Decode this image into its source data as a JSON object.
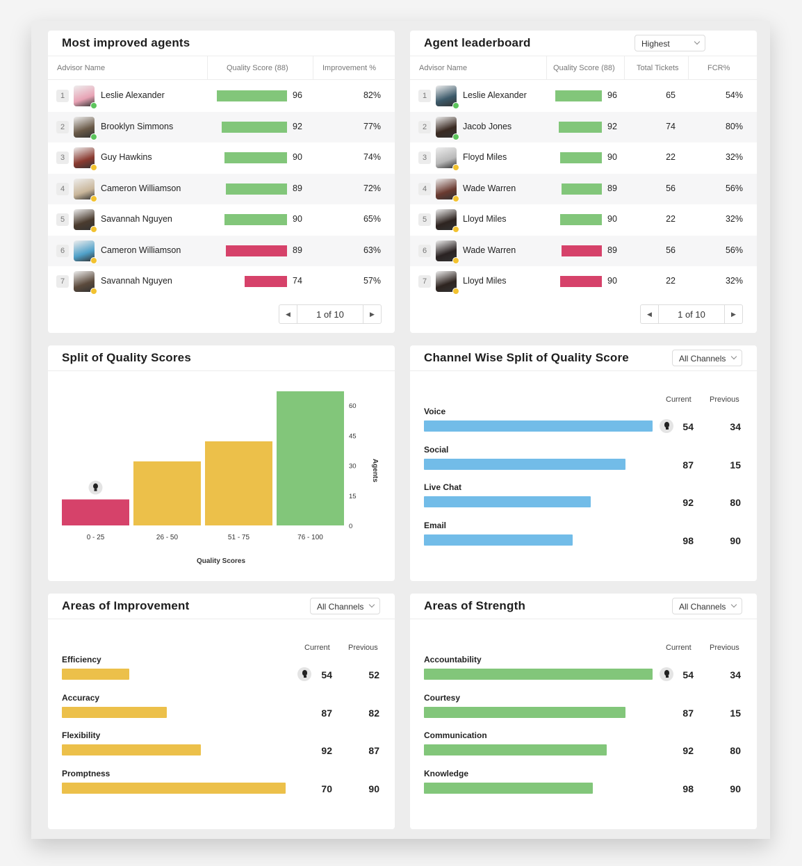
{
  "colors": {
    "green": "#82c67a",
    "red": "#d6426a",
    "yellow": "#ecc04a",
    "blue": "#72bce8",
    "status_green": "#5cc45c",
    "status_yellow": "#f2c230"
  },
  "most_improved": {
    "title": "Most improved agents",
    "columns": {
      "name": "Advisor Name",
      "score": "Quality Score (88)",
      "improvement": "Improvement %"
    },
    "rows": [
      {
        "rank": "1",
        "name": "Leslie Alexander",
        "score": 96,
        "score_text": "96",
        "improvement": "82%",
        "bar_color": "green",
        "status": "status_green",
        "avatar": "#e8a3b5"
      },
      {
        "rank": "2",
        "name": "Brooklyn Simmons",
        "score": 92,
        "score_text": "92",
        "improvement": "77%",
        "bar_color": "green",
        "status": "status_green",
        "avatar": "#6a5a48"
      },
      {
        "rank": "3",
        "name": "Guy Hawkins",
        "score": 90,
        "score_text": "90",
        "improvement": "74%",
        "bar_color": "green",
        "status": "status_yellow",
        "avatar": "#8a3a30"
      },
      {
        "rank": "4",
        "name": "Cameron Williamson",
        "score": 89,
        "score_text": "89",
        "improvement": "72%",
        "bar_color": "green",
        "status": "status_yellow",
        "avatar": "#c9b69a"
      },
      {
        "rank": "5",
        "name": "Savannah Nguyen",
        "score": 90,
        "score_text": "90",
        "improvement": "65%",
        "bar_color": "green",
        "status": "status_yellow",
        "avatar": "#4a3b2e"
      },
      {
        "rank": "6",
        "name": "Cameron Williamson",
        "score": 89,
        "score_text": "89",
        "improvement": "63%",
        "bar_color": "red",
        "status": "status_yellow",
        "avatar": "#4fa0c8"
      },
      {
        "rank": "7",
        "name": "Savannah Nguyen",
        "score": 74,
        "score_text": "74",
        "improvement": "57%",
        "bar_color": "red",
        "status": "status_yellow",
        "avatar": "#5b4a3c"
      }
    ],
    "pager": {
      "text": "1 of 10",
      "prev": "◀",
      "next": "▶"
    }
  },
  "leaderboard": {
    "title": "Agent leaderboard",
    "dropdown": "Highest",
    "columns": {
      "name": "Advisor Name",
      "score": "Quality Score (88)",
      "tickets": "Total Tickets",
      "fcr": "FCR%"
    },
    "rows": [
      {
        "rank": "1",
        "name": "Leslie Alexander",
        "score": 96,
        "score_text": "96",
        "tickets": "65",
        "fcr": "54%",
        "bar_color": "green",
        "status": "status_green",
        "avatar": "#3c5a6a"
      },
      {
        "rank": "2",
        "name": "Jacob Jones",
        "score": 92,
        "score_text": "92",
        "tickets": "74",
        "fcr": "80%",
        "bar_color": "green",
        "status": "status_green",
        "avatar": "#3a2a22"
      },
      {
        "rank": "3",
        "name": "Floyd Miles",
        "score": 90,
        "score_text": "90",
        "tickets": "22",
        "fcr": "32%",
        "bar_color": "green",
        "status": "status_yellow",
        "avatar": "#b8b8b8"
      },
      {
        "rank": "4",
        "name": "Wade Warren",
        "score": 89,
        "score_text": "89",
        "tickets": "56",
        "fcr": "56%",
        "bar_color": "green",
        "status": "status_yellow",
        "avatar": "#6a3a30"
      },
      {
        "rank": "5",
        "name": "Lloyd Miles",
        "score": 90,
        "score_text": "90",
        "tickets": "22",
        "fcr": "32%",
        "bar_color": "green",
        "status": "status_yellow",
        "avatar": "#2e2420"
      },
      {
        "rank": "6",
        "name": "Wade Warren",
        "score": 89,
        "score_text": "89",
        "tickets": "56",
        "fcr": "56%",
        "bar_color": "red",
        "status": "status_yellow",
        "avatar": "#2a2222"
      },
      {
        "rank": "7",
        "name": "Lloyd Miles",
        "score": 90,
        "score_text": "90",
        "tickets": "22",
        "fcr": "32%",
        "bar_color": "red",
        "status": "status_yellow",
        "avatar": "#2e2420"
      }
    ],
    "pager": {
      "text": "1 of 10",
      "prev": "◀",
      "next": "▶"
    }
  },
  "split": {
    "title": "Split of Quality Scores",
    "chart_data": {
      "type": "bar",
      "categories": [
        "0 - 25",
        "26 - 50",
        "51 - 75",
        "76 - 100"
      ],
      "values": [
        13,
        32,
        42,
        67
      ],
      "colors": [
        "red",
        "yellow",
        "yellow",
        "green"
      ],
      "xlabel": "Quality Scores",
      "ylabel": "Agents",
      "yticks": [
        "0",
        "15",
        "30",
        "45",
        "60"
      ],
      "ylim": [
        0,
        67
      ],
      "annotation_icon": "lightbulb-icon"
    }
  },
  "channel_split": {
    "title": "Channel Wise Split of Quality Score",
    "dropdown": "All Channels",
    "col_current": "Current",
    "col_previous": "Previous",
    "bar_color": "blue",
    "items": [
      {
        "label": "Voice",
        "fill": 1.0,
        "current": "54",
        "previous": "34",
        "bulb": true
      },
      {
        "label": "Social",
        "fill": 0.88,
        "current": "87",
        "previous": "15",
        "bulb": false
      },
      {
        "label": "Live Chat",
        "fill": 0.73,
        "current": "92",
        "previous": "80",
        "bulb": false
      },
      {
        "label": "Email",
        "fill": 0.65,
        "current": "98",
        "previous": "90",
        "bulb": false
      }
    ]
  },
  "improvement": {
    "title": "Areas of Improvement",
    "dropdown": "All Channels",
    "col_current": "Current",
    "col_previous": "Previous",
    "bar_color": "yellow",
    "items": [
      {
        "label": "Efficiency",
        "fill": 0.3,
        "current": "54",
        "previous": "52",
        "bulb": true
      },
      {
        "label": "Accuracy",
        "fill": 0.47,
        "current": "87",
        "previous": "82",
        "bulb": false
      },
      {
        "label": "Flexibility",
        "fill": 0.62,
        "current": "92",
        "previous": "87",
        "bulb": false
      },
      {
        "label": "Promptness",
        "fill": 1.0,
        "current": "70",
        "previous": "90",
        "bulb": false
      }
    ]
  },
  "strength": {
    "title": "Areas of Strength",
    "dropdown": "All Channels",
    "col_current": "Current",
    "col_previous": "Previous",
    "bar_color": "green",
    "items": [
      {
        "label": "Accountability",
        "fill": 1.0,
        "current": "54",
        "previous": "34",
        "bulb": true
      },
      {
        "label": "Courtesy",
        "fill": 0.88,
        "current": "87",
        "previous": "15",
        "bulb": false
      },
      {
        "label": "Communication",
        "fill": 0.8,
        "current": "92",
        "previous": "80",
        "bulb": false
      },
      {
        "label": "Knowledge",
        "fill": 0.74,
        "current": "98",
        "previous": "90",
        "bulb": false
      }
    ]
  }
}
